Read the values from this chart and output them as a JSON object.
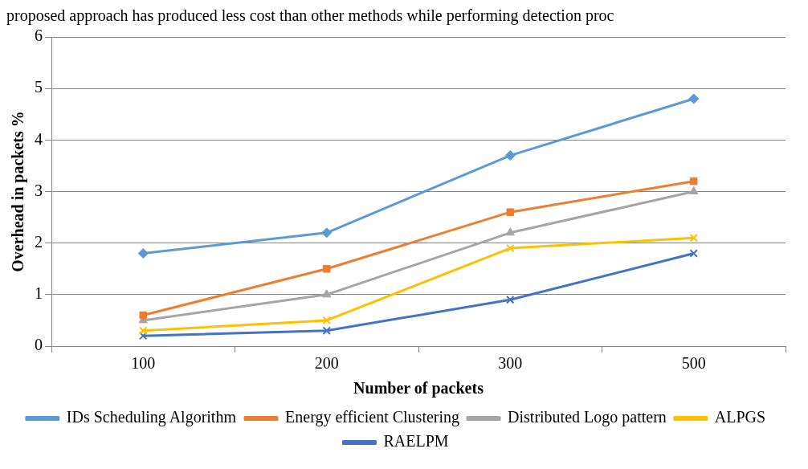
{
  "chart_data": {
    "type": "line",
    "annotations": [
      "proposed approach has produced less cost than other methods while performing detection proc"
    ],
    "xlabel": "Number of packets",
    "ylabel": "Overhead in packets %",
    "categories": [
      "100",
      "200",
      "300",
      "500"
    ],
    "series": [
      {
        "name": "IDs Scheduling Algorithm",
        "color": "#5b9bd5",
        "marker": "diamond",
        "values": [
          1.8,
          2.2,
          3.7,
          4.8
        ]
      },
      {
        "name": "Energy efficient Clustering",
        "color": "#ed7d31",
        "marker": "square",
        "values": [
          0.6,
          1.5,
          2.6,
          3.2
        ]
      },
      {
        "name": "Distributed Logo pattern",
        "color": "#a5a5a5",
        "marker": "triangle",
        "values": [
          0.5,
          1.0,
          2.2,
          3.0
        ]
      },
      {
        "name": "ALPGS",
        "color": "#ffc000",
        "marker": "cross",
        "values": [
          0.3,
          0.5,
          1.9,
          2.1
        ]
      },
      {
        "name": "RAELPM",
        "color": "#4472c4",
        "marker": "cross",
        "values": [
          0.2,
          0.3,
          0.9,
          1.8
        ]
      }
    ],
    "ylim": [
      0,
      6
    ],
    "yticks": [
      0,
      1,
      2,
      3,
      4,
      5,
      6
    ],
    "grid": "y",
    "legend": "bottom",
    "line_style": "solid"
  }
}
